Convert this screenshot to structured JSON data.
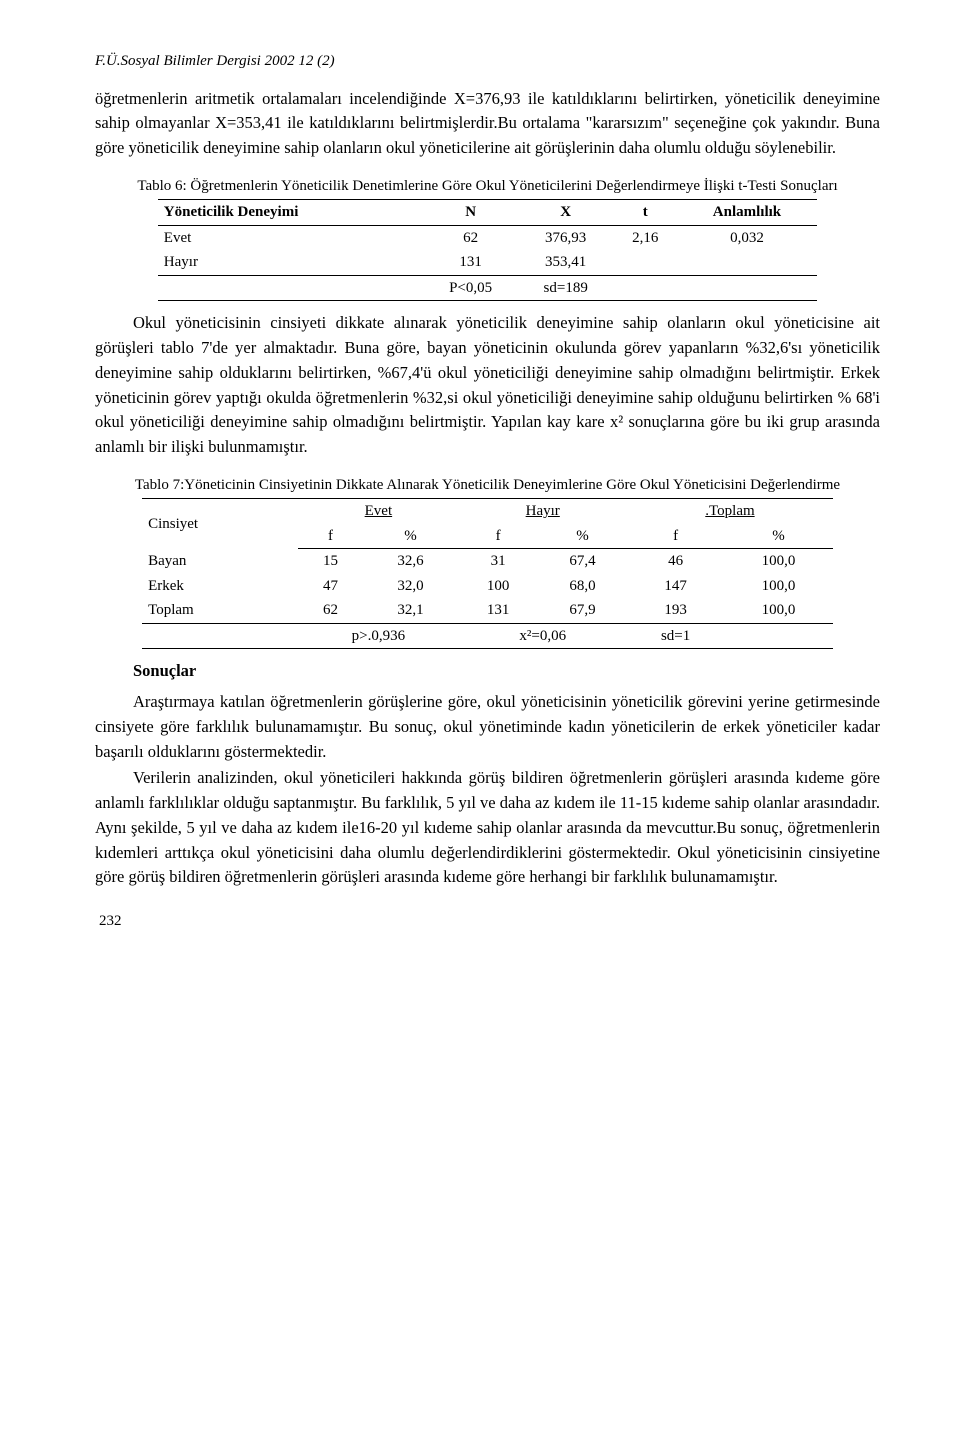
{
  "header": "F.Ü.Sosyal Bilimler Dergisi 2002 12 (2)",
  "para1": "öğretmenlerin aritmetik ortalamaları incelendiğinde X=376,93 ile katıldıklarını belirtirken, yöneticilik deneyimine sahip olmayanlar X=353,41 ile katıldıklarını belirtmişlerdir.Bu ortalama \"kararsızım\" seçeneğine çok yakındır. Buna göre yöneticilik deneyimine sahip olanların okul yöneticilerine ait görüşlerinin daha olumlu olduğu söylenebilir.",
  "t6": {
    "caption": "Tablo 6: Öğretmenlerin Yöneticilik Denetimlerine Göre Okul Yöneticilerini Değerlendirmeye İlişki t-Testi Sonuçları",
    "headers": [
      "Yöneticilik Deneyimi",
      "N",
      "X",
      "t",
      "Anlamlılık"
    ],
    "rows": [
      [
        "Evet",
        "62",
        "376,93",
        "2,16",
        "0,032"
      ],
      [
        "Hayır",
        "131",
        "353,41",
        "",
        ""
      ]
    ],
    "footer": [
      "",
      "P<0,05",
      "sd=189",
      "",
      ""
    ]
  },
  "para2": "Okul yöneticisinin cinsiyeti dikkate alınarak yöneticilik deneyimine sahip olanların okul yöneticisine ait görüşleri tablo 7'de yer almaktadır. Buna göre, bayan yöneticinin okulunda görev yapanların %32,6'sı yöneticilik deneyimine sahip olduklarını belirtirken, %67,4'ü okul yöneticiliği deneyimine sahip olmadığını belirtmiştir. Erkek yöneticinin görev yaptığı okulda öğretmenlerin %32,si okul yöneticiliği deneyimine sahip olduğunu belirtirken % 68'i okul yöneticiliği deneyimine sahip olmadığını belirtmiştir. Yapılan kay kare x² sonuçlarına göre bu iki grup arasında anlamlı bir ilişki bulunmamıştır.",
  "t7": {
    "caption": "Tablo 7:Yöneticinin Cinsiyetinin Dikkate Alınarak Yöneticilik Deneyimlerine Göre Okul Yöneticisini Değerlendirme",
    "col_group_labels": [
      "Cinsiyet",
      "Evet",
      "Hayır",
      ".Toplam"
    ],
    "sub_headers": [
      "f",
      "%",
      "f",
      "%",
      "f",
      "%"
    ],
    "rows": [
      [
        "Bayan",
        "15",
        "32,6",
        "31",
        "67,4",
        "46",
        "100,0"
      ],
      [
        "Erkek",
        "47",
        "32,0",
        "100",
        "68,0",
        "147",
        "100,0"
      ],
      [
        "Toplam",
        "62",
        "32,1",
        "131",
        "67,9",
        "193",
        "100,0"
      ]
    ],
    "footer": [
      "",
      "p>.0,936",
      "x²=0,06",
      "sd=1",
      ""
    ]
  },
  "section_head": "Sonuçlar",
  "para3": "Araştırmaya katılan öğretmenlerin görüşlerine göre, okul yöneticisinin yöneticilik görevini yerine getirmesinde cinsiyete göre farklılık bulunamamıştır. Bu sonuç, okul yönetiminde kadın yöneticilerin de erkek yöneticiler kadar başarılı olduklarını göstermektedir.",
  "para4": "Verilerin analizinden, okul yöneticileri hakkında görüş bildiren öğretmenlerin görüşleri arasında kıdeme göre anlamlı farklılıklar olduğu saptanmıştır. Bu farklılık, 5 yıl ve daha az kıdem ile 11-15 kıdeme sahip olanlar arasındadır. Aynı şekilde, 5 yıl ve daha az kıdem ile16-20 yıl kıdeme sahip olanlar arasında da mevcuttur.Bu sonuç, öğretmenlerin kıdemleri arttıkça okul yöneticisini daha olumlu değerlendirdiklerini göstermektedir. Okul yöneticisinin cinsiyetine göre görüş bildiren öğretmenlerin görüşleri arasında kıdeme göre herhangi bir farklılık bulunamamıştır.",
  "page_number": "232"
}
